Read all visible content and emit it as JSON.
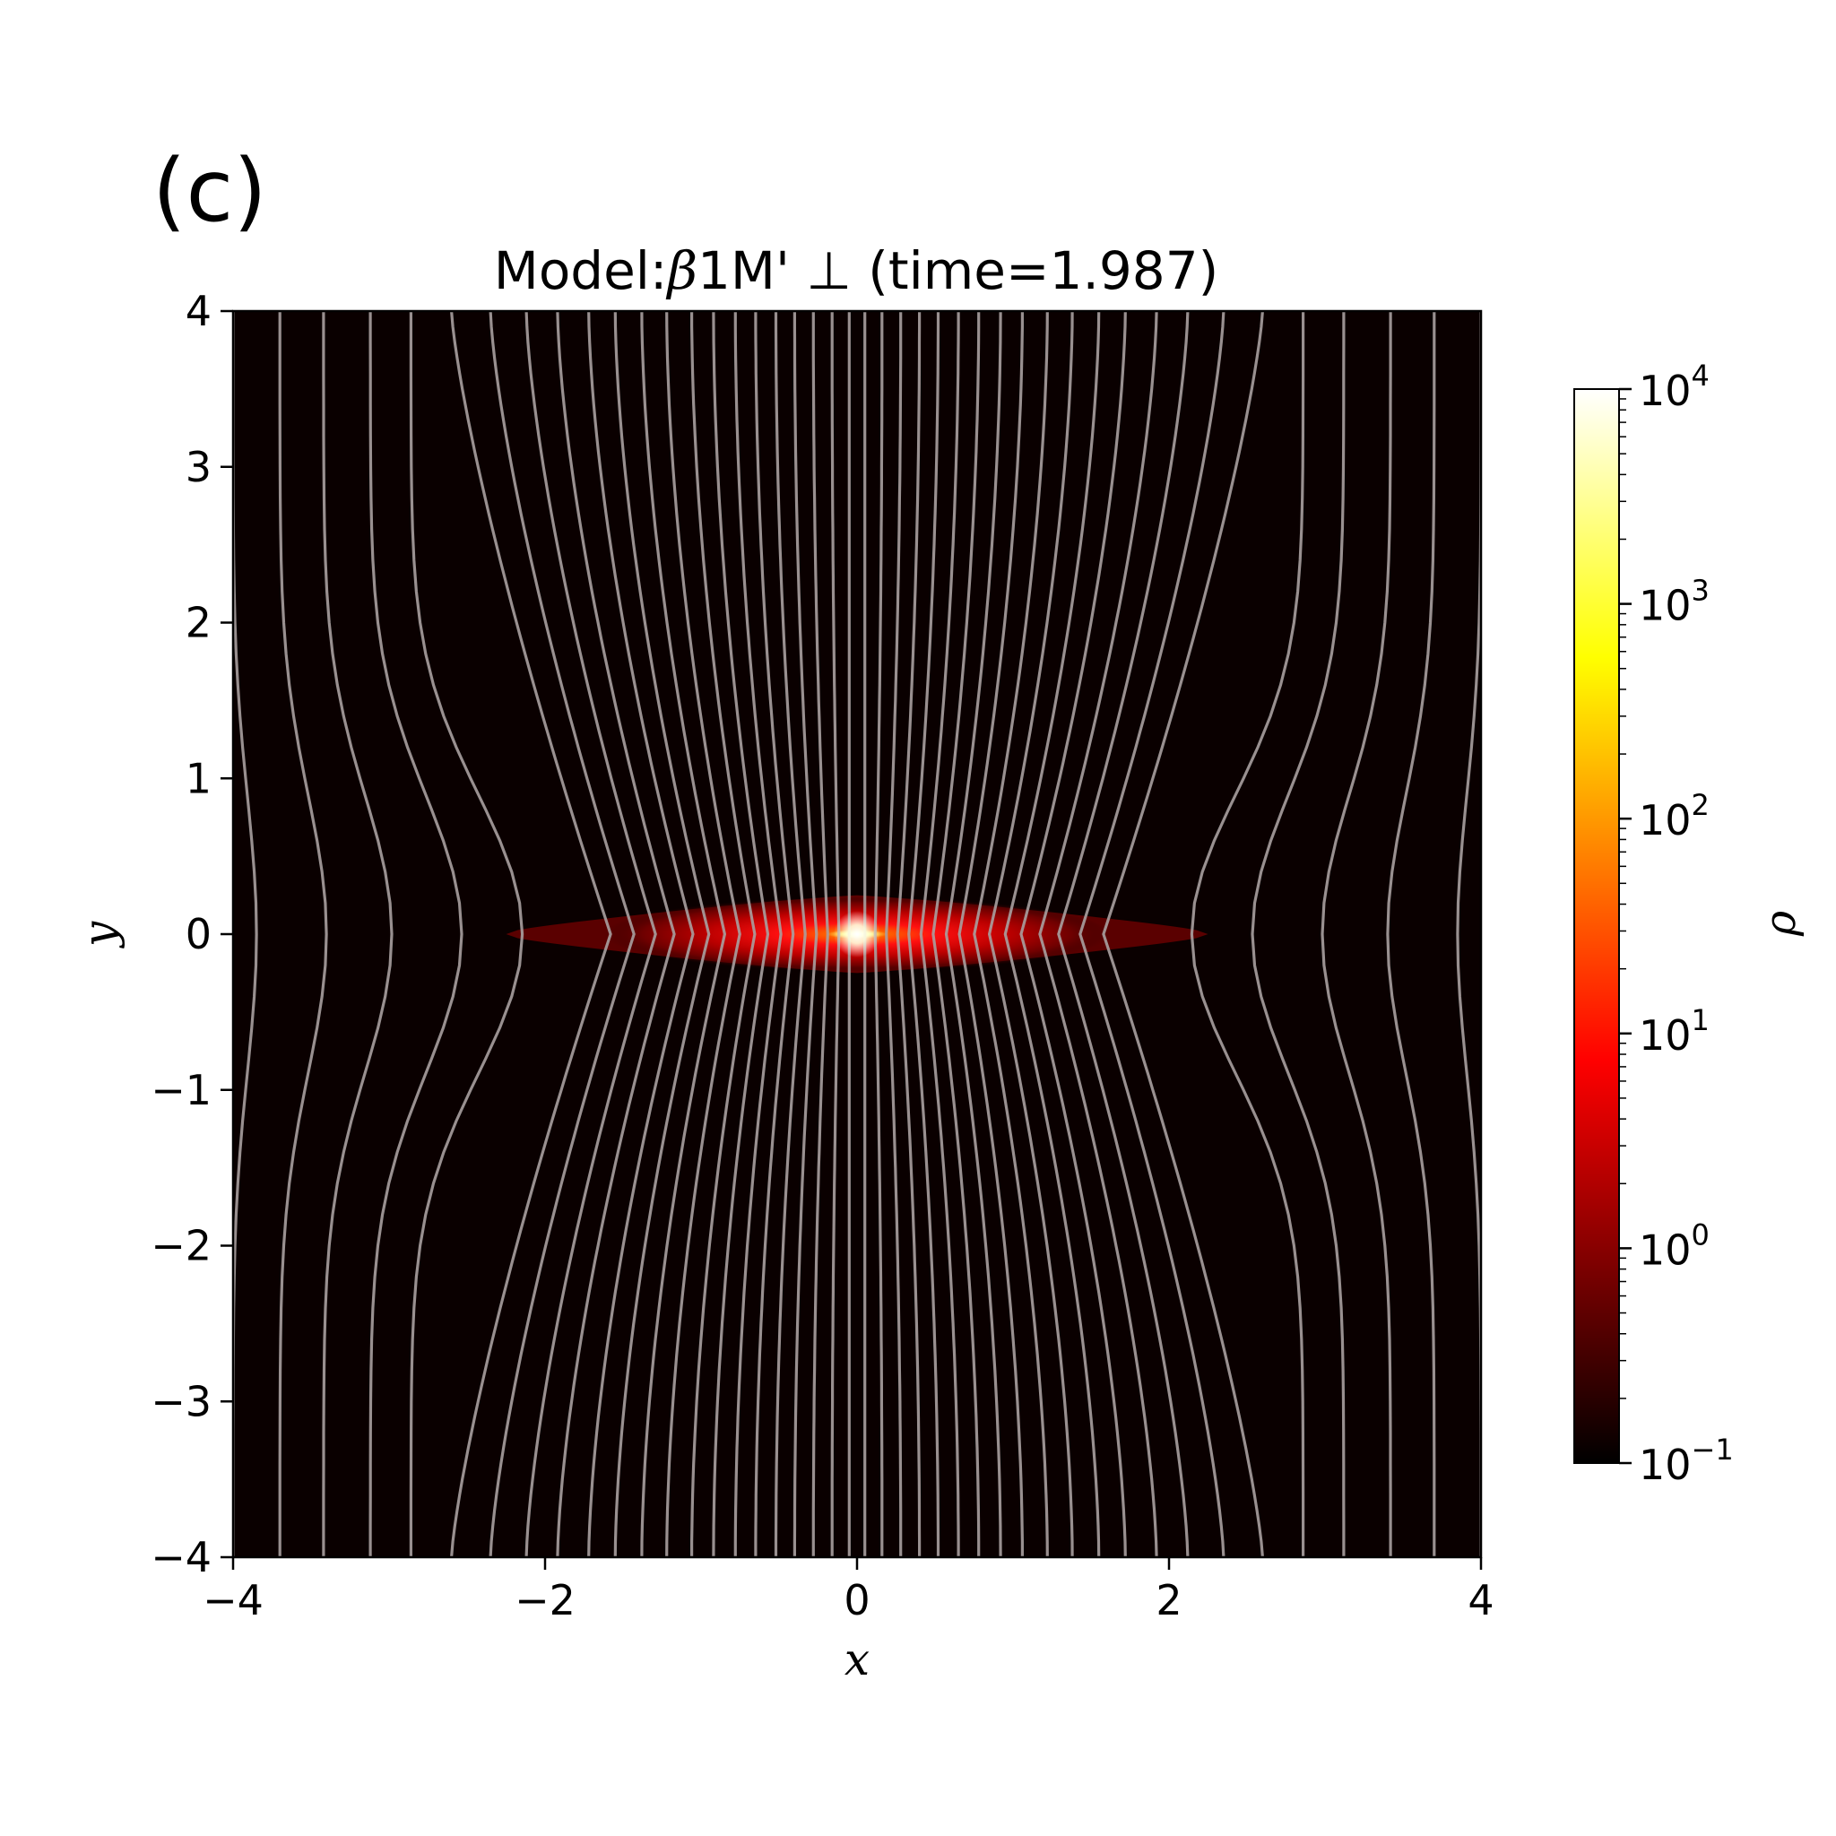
{
  "figure": {
    "panel_label": "(c)",
    "title_prefix": "Model:",
    "title_greek": "β",
    "title_suffix": "1M' ⊥ (time=1.987)"
  },
  "chart_data": {
    "type": "heatmap",
    "xlabel": "x",
    "ylabel": "y",
    "xlim": [
      -4,
      4
    ],
    "ylim": [
      -4,
      4
    ],
    "x_ticks": [
      -4,
      -2,
      0,
      2,
      4
    ],
    "y_ticks": [
      -4,
      -3,
      -2,
      -1,
      0,
      1,
      2,
      3,
      4
    ],
    "x_tick_labels": [
      "−4",
      "−2",
      "0",
      "2",
      "4"
    ],
    "y_tick_labels": [
      "−4",
      "−3",
      "−2",
      "−1",
      "0",
      "1",
      "2",
      "3",
      "4"
    ],
    "background_color": "#0a0000",
    "field_line_color": "#a8a0a0",
    "colorbar": {
      "label": "ρ",
      "scale": "log",
      "range": [
        0.1,
        10000
      ],
      "ticks": [
        {
          "value": 0.1,
          "base": "10",
          "exp": "−1"
        },
        {
          "value": 1,
          "base": "10",
          "exp": "0"
        },
        {
          "value": 10,
          "base": "10",
          "exp": "1"
        },
        {
          "value": 100,
          "base": "10",
          "exp": "2"
        },
        {
          "value": 1000,
          "base": "10",
          "exp": "3"
        },
        {
          "value": 10000,
          "base": "10",
          "exp": "4"
        }
      ],
      "colormap": "hot",
      "colors": [
        "#000000",
        "#ff0000",
        "#ffff00",
        "#ffffff"
      ]
    },
    "disk": {
      "center": [
        0,
        0
      ],
      "outer_extent_x": 2.25,
      "half_thickness_y": 0.25,
      "peak_density": 10000
    },
    "field_lines": {
      "count": 56,
      "description_values": {
        "x_positions_at_top": [
          -4.0,
          -3.7,
          -3.42,
          -3.12,
          -2.86,
          -2.6,
          -2.35,
          -2.12,
          -1.92,
          -1.72,
          -1.55,
          -1.38,
          -1.22,
          -1.06,
          -0.92,
          -0.78,
          -0.65,
          -0.52,
          -0.4,
          -0.28,
          -0.16,
          -0.05,
          0.05,
          0.16,
          0.28,
          0.4,
          0.52,
          0.65,
          0.78,
          0.92,
          1.06,
          1.22,
          1.38,
          1.55,
          1.72,
          1.92,
          2.12,
          2.35,
          2.6,
          2.86,
          3.12,
          3.42,
          3.7,
          4.0
        ]
      }
    }
  }
}
